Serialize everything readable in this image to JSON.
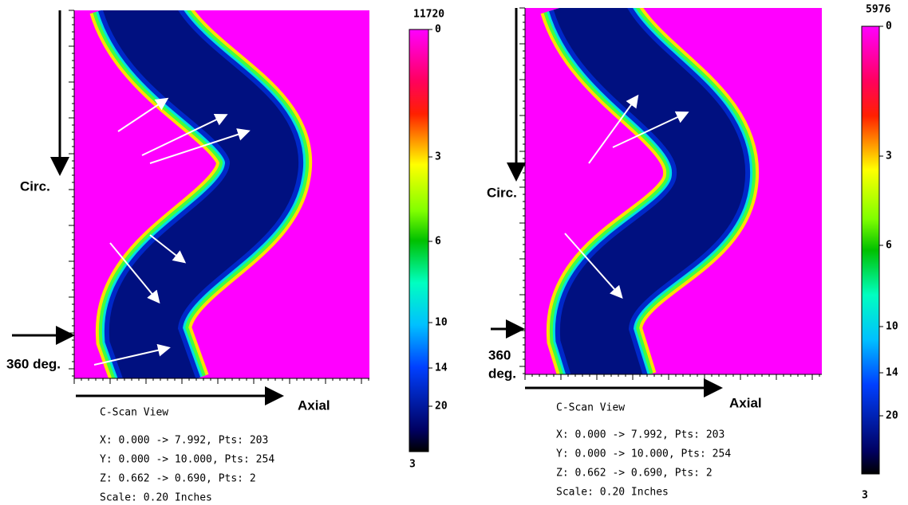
{
  "panels": [
    {
      "colorbar": {
        "max": 11720,
        "ticks": [
          0,
          3,
          6,
          10,
          14,
          20
        ],
        "bottom": 3
      },
      "labels": {
        "circ": "Circ.",
        "deg": [
          "360 deg."
        ],
        "axial": "Axial"
      },
      "info": {
        "view": "C-Scan View",
        "x": "X: 0.000 -> 7.992, Pts: 203",
        "y": "Y: 0.000 -> 10.000, Pts: 254",
        "z": "Z: 0.662 -> 0.690, Pts: 2",
        "scale": "Scale:   0.20 Inches"
      }
    },
    {
      "colorbar": {
        "max": 5976,
        "ticks": [
          0,
          3,
          6,
          10,
          14,
          20
        ],
        "bottom": 3
      },
      "labels": {
        "circ": "Circ.",
        "deg": [
          "360",
          "deg."
        ],
        "axial": "Axial"
      },
      "info": {
        "view": "C-Scan View",
        "x": "X: 0.000 -> 7.992, Pts: 203",
        "y": "Y: 0.000 -> 10.000, Pts: 254",
        "z": "Z: 0.662 -> 0.690, Pts: 2",
        "scale": "Scale:   0.20 Inches"
      }
    }
  ]
}
